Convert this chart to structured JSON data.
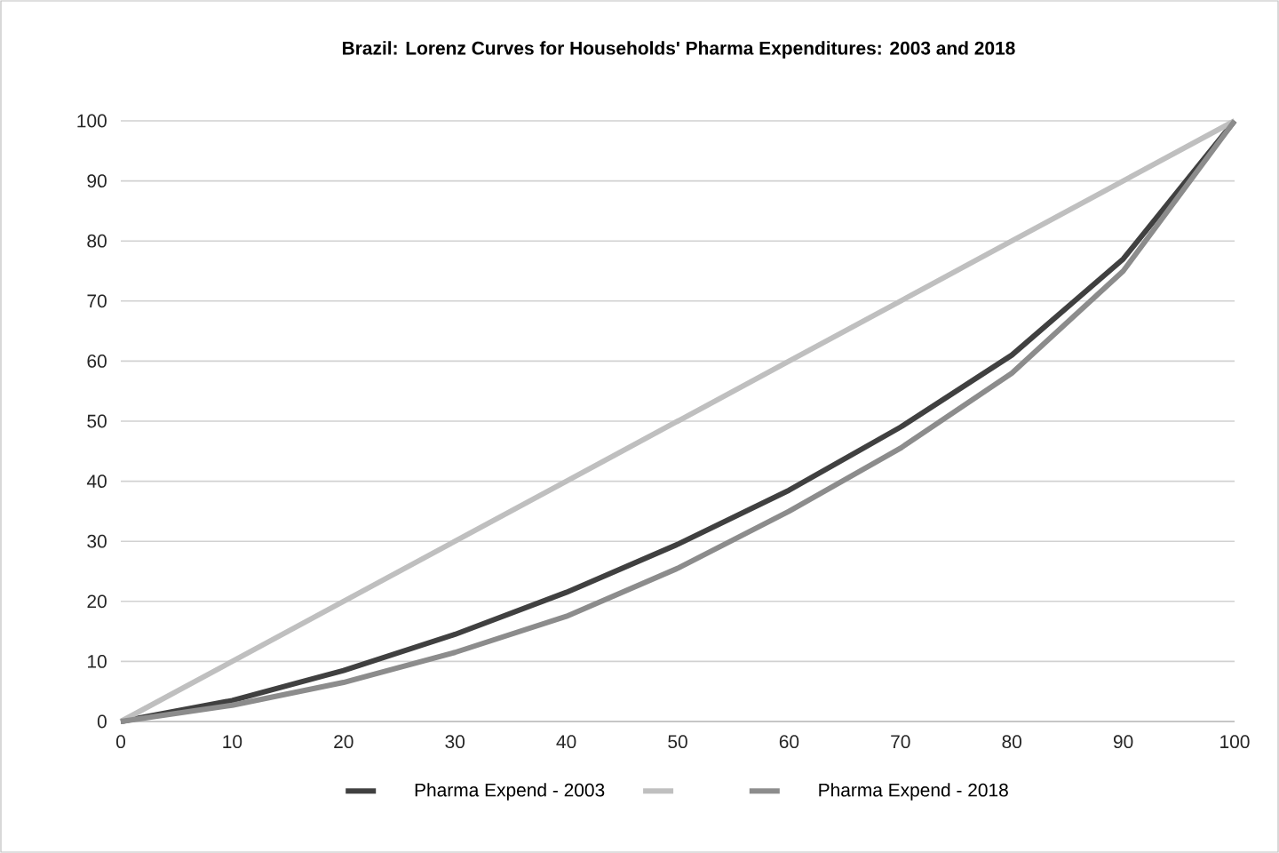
{
  "chart_data": {
    "type": "line",
    "title": "Brazil: Lorenz Curves for Households' Pharma Expenditures: 2003 and 2018",
    "x": [
      0,
      10,
      20,
      30,
      40,
      50,
      60,
      70,
      80,
      90,
      100
    ],
    "series": [
      {
        "name": "Pharma Expend - 2003",
        "color": "#404040",
        "values": [
          0,
          3.5,
          8.5,
          14.5,
          21.5,
          29.5,
          38.5,
          49,
          61,
          77,
          100
        ]
      },
      {
        "color": "#bfbfbf",
        "values": [
          0,
          10,
          20,
          30,
          40,
          50,
          60,
          70,
          80,
          90,
          100
        ]
      },
      {
        "name": "Pharma Expend - 2018",
        "color": "#8c8c8c",
        "values": [
          0,
          2.7,
          6.5,
          11.5,
          17.5,
          25.5,
          35,
          45.5,
          58,
          75,
          100
        ]
      }
    ],
    "xlim": [
      0,
      100
    ],
    "ylim": [
      0,
      100
    ],
    "xticks": [
      0,
      10,
      20,
      30,
      40,
      50,
      60,
      70,
      80,
      90,
      100
    ],
    "yticks": [
      0,
      10,
      20,
      30,
      40,
      50,
      60,
      70,
      80,
      90,
      100
    ],
    "grid": "y",
    "legend": "bottom",
    "marker": "none",
    "line_style": "solid"
  }
}
